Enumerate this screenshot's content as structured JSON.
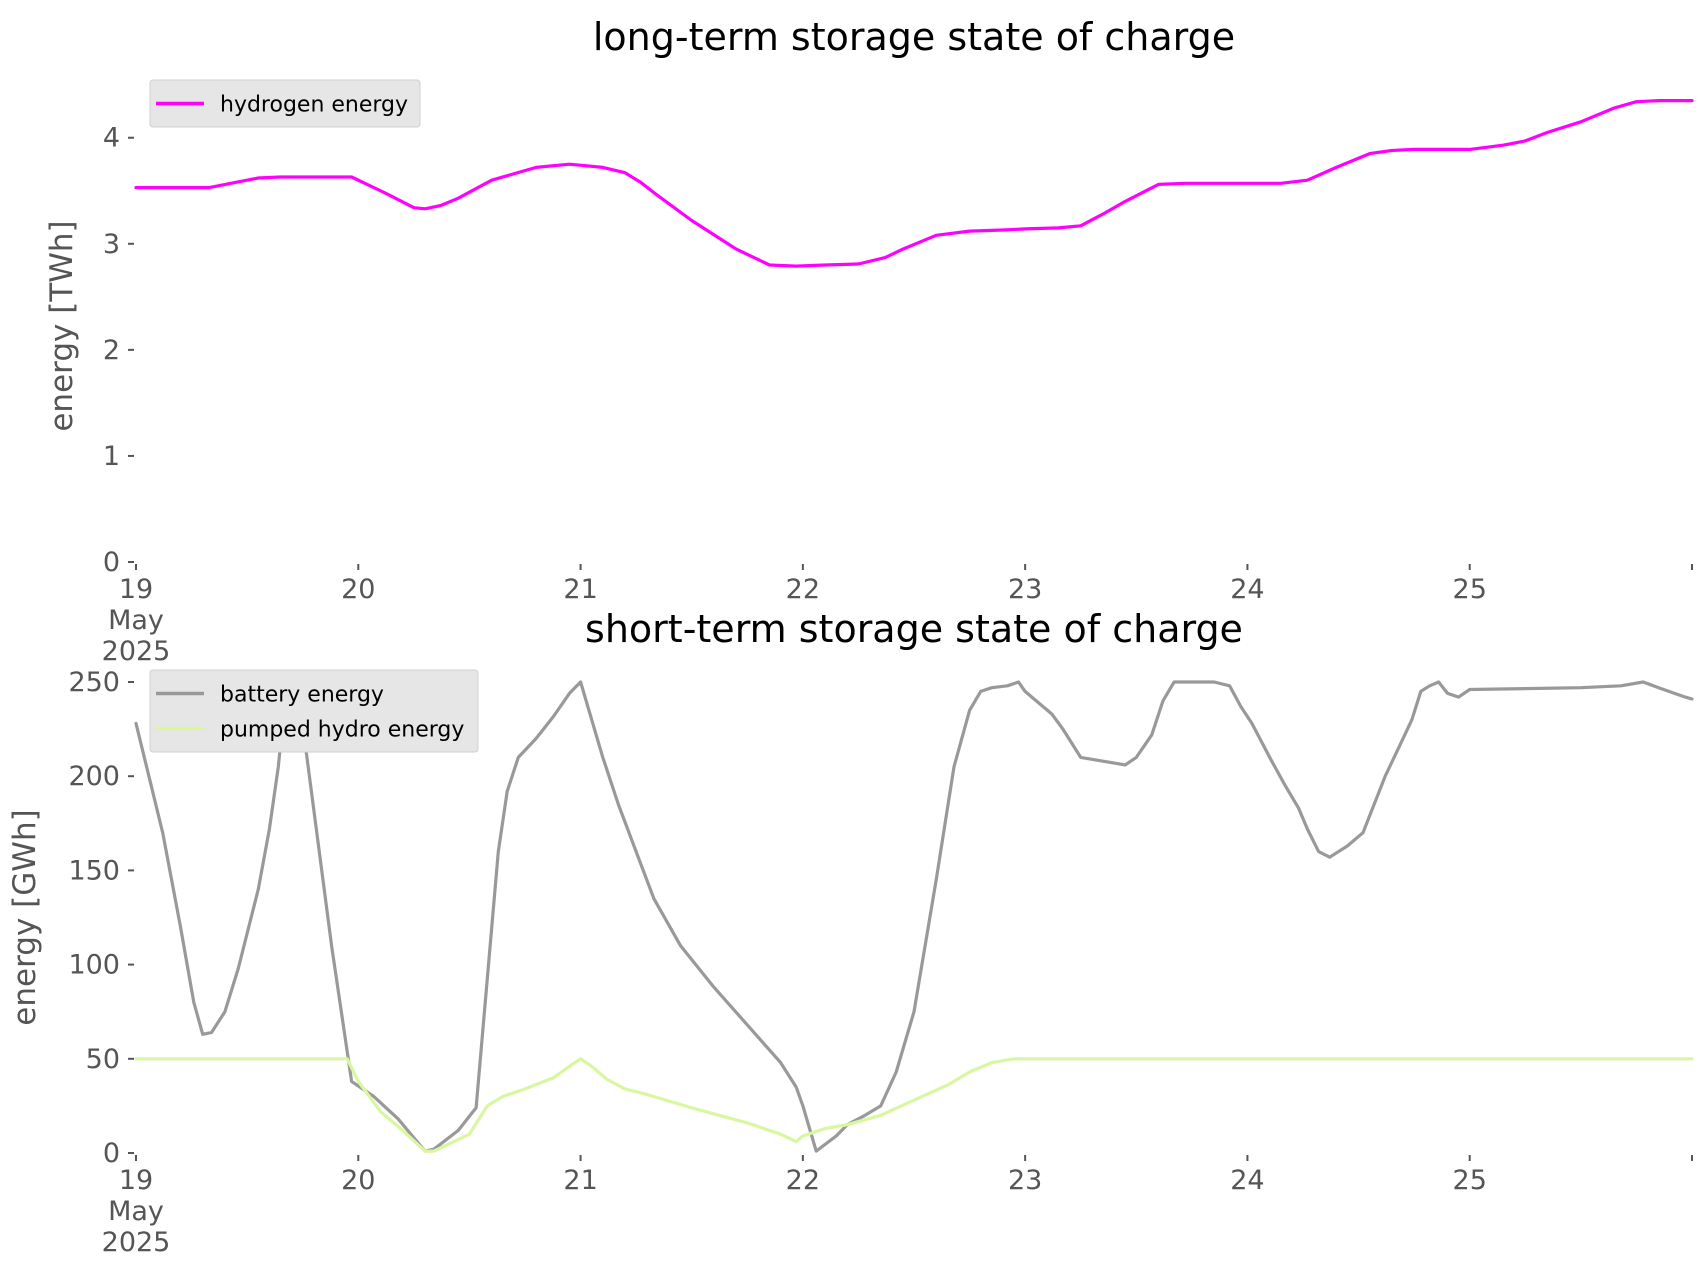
{
  "chart_data": [
    {
      "type": "line",
      "title": "long-term storage state of charge",
      "ylabel": "energy [TWh]",
      "xlabel": "",
      "xlim": [
        0,
        7
      ],
      "ylim": [
        0,
        4.45
      ],
      "yticks": [
        0,
        1,
        2,
        3,
        4
      ],
      "xticks": [
        {
          "x": 0,
          "label": [
            "19",
            "May",
            "2025"
          ]
        },
        {
          "x": 1,
          "label": [
            "20"
          ]
        },
        {
          "x": 2,
          "label": [
            "21"
          ]
        },
        {
          "x": 3,
          "label": [
            "22"
          ]
        },
        {
          "x": 4,
          "label": [
            "23"
          ]
        },
        {
          "x": 5,
          "label": [
            "24"
          ]
        },
        {
          "x": 6,
          "label": [
            "25"
          ]
        },
        {
          "x": 7,
          "label": [
            ""
          ]
        }
      ],
      "legend": "top-left",
      "grid": false,
      "series": [
        {
          "name": "hydrogen energy",
          "color": "#ff00ff",
          "x": [
            0,
            0.33,
            0.45,
            0.55,
            0.65,
            0.97,
            1.12,
            1.25,
            1.3,
            1.37,
            1.45,
            1.6,
            1.8,
            1.95,
            2.1,
            2.2,
            2.27,
            2.35,
            2.5,
            2.7,
            2.85,
            2.97,
            3.1,
            3.25,
            3.37,
            3.45,
            3.6,
            3.75,
            3.9,
            4.0,
            4.15,
            4.25,
            4.35,
            4.45,
            4.6,
            4.72,
            4.85,
            5.0,
            5.15,
            5.27,
            5.4,
            5.55,
            5.65,
            5.75,
            5.9,
            6.0,
            6.15,
            6.25,
            6.35,
            6.5,
            6.65,
            6.75,
            6.85,
            7.0
          ],
          "y": [
            3.53,
            3.53,
            3.58,
            3.62,
            3.63,
            3.63,
            3.48,
            3.34,
            3.33,
            3.36,
            3.43,
            3.6,
            3.72,
            3.75,
            3.72,
            3.67,
            3.58,
            3.45,
            3.22,
            2.95,
            2.8,
            2.79,
            2.8,
            2.81,
            2.87,
            2.95,
            3.08,
            3.12,
            3.13,
            3.14,
            3.15,
            3.17,
            3.28,
            3.4,
            3.56,
            3.57,
            3.57,
            3.57,
            3.57,
            3.6,
            3.72,
            3.85,
            3.88,
            3.89,
            3.89,
            3.89,
            3.93,
            3.97,
            4.05,
            4.15,
            4.28,
            4.34,
            4.35,
            4.35
          ]
        }
      ]
    },
    {
      "type": "line",
      "title": "short-term storage state of charge",
      "ylabel": "energy [GWh]",
      "xlabel": "",
      "xlim": [
        0,
        7
      ],
      "ylim": [
        0,
        250
      ],
      "yticks": [
        0,
        50,
        100,
        150,
        200,
        250
      ],
      "xticks": [
        {
          "x": 0,
          "label": [
            "19",
            "May",
            "2025"
          ]
        },
        {
          "x": 1,
          "label": [
            "20"
          ]
        },
        {
          "x": 2,
          "label": [
            "21"
          ]
        },
        {
          "x": 3,
          "label": [
            "22"
          ]
        },
        {
          "x": 4,
          "label": [
            "23"
          ]
        },
        {
          "x": 5,
          "label": [
            "24"
          ]
        },
        {
          "x": 6,
          "label": [
            "25"
          ]
        },
        {
          "x": 7,
          "label": [
            ""
          ]
        }
      ],
      "legend": "top-left",
      "grid": false,
      "series": [
        {
          "name": "battery energy",
          "color": "#999999",
          "x": [
            0,
            0.12,
            0.2,
            0.26,
            0.3,
            0.34,
            0.4,
            0.46,
            0.55,
            0.6,
            0.64,
            0.67,
            0.7,
            0.73,
            0.78,
            0.88,
            0.97,
            1.07,
            1.18,
            1.3,
            1.34,
            1.45,
            1.53,
            1.63,
            1.67,
            1.72,
            1.8,
            1.88,
            1.95,
            2.0,
            2.1,
            2.17,
            2.25,
            2.33,
            2.45,
            2.6,
            2.75,
            2.9,
            2.97,
            3.0,
            3.06,
            3.15,
            3.2,
            3.28,
            3.35,
            3.42,
            3.5,
            3.6,
            3.68,
            3.75,
            3.8,
            3.85,
            3.92,
            3.97,
            4.0,
            4.07,
            4.12,
            4.17,
            4.25,
            4.45,
            4.5,
            4.57,
            4.62,
            4.67,
            4.72,
            4.85,
            4.92,
            4.97,
            5.02,
            5.1,
            5.17,
            5.23,
            5.27,
            5.32,
            5.37,
            5.45,
            5.52,
            5.62,
            5.68,
            5.74,
            5.78,
            5.82,
            5.86,
            5.9,
            5.95,
            6.0,
            6.5,
            6.68,
            6.78,
            6.85,
            6.92,
            6.97,
            7.0
          ],
          "y": [
            228,
            170,
            120,
            80,
            63,
            64,
            75,
            98,
            140,
            172,
            205,
            240,
            250,
            245,
            200,
            110,
            38,
            30,
            18,
            1,
            2,
            12,
            24,
            160,
            192,
            210,
            220,
            232,
            244,
            250,
            210,
            185,
            160,
            135,
            110,
            88,
            68,
            48,
            35,
            25,
            1,
            9,
            15,
            20,
            25,
            43,
            75,
            145,
            205,
            235,
            245,
            247,
            248,
            250,
            245,
            238,
            233,
            225,
            210,
            206,
            210,
            222,
            240,
            250,
            250,
            250,
            248,
            237,
            228,
            210,
            195,
            183,
            172,
            160,
            157,
            163,
            170,
            200,
            215,
            230,
            245,
            248,
            250,
            244,
            242,
            246,
            247,
            248,
            250,
            247,
            244,
            242,
            241
          ]
        },
        {
          "name": "pumped hydro energy",
          "color": "#d9f7a1",
          "x": [
            0,
            0.95,
            1.0,
            1.1,
            1.2,
            1.3,
            1.34,
            1.5,
            1.58,
            1.65,
            1.75,
            1.88,
            1.95,
            2.0,
            2.05,
            2.12,
            2.2,
            2.3,
            2.5,
            2.75,
            2.9,
            2.97,
            3.0,
            3.1,
            3.2,
            3.35,
            3.5,
            3.65,
            3.75,
            3.85,
            3.95,
            4.0,
            7.0
          ],
          "y": [
            50,
            50,
            38,
            22,
            12,
            1,
            1,
            10,
            25,
            30,
            34,
            40,
            46,
            50,
            46,
            39,
            34,
            31,
            24,
            16,
            10,
            6,
            9,
            13,
            15,
            20,
            28,
            36,
            43,
            48,
            50,
            50,
            50
          ]
        }
      ]
    }
  ]
}
